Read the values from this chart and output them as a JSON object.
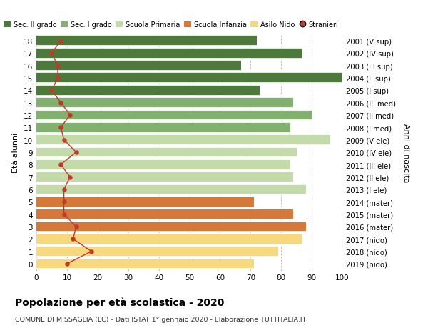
{
  "ages": [
    18,
    17,
    16,
    15,
    14,
    13,
    12,
    11,
    10,
    9,
    8,
    7,
    6,
    5,
    4,
    3,
    2,
    1,
    0
  ],
  "years": [
    "2001 (V sup)",
    "2002 (IV sup)",
    "2003 (III sup)",
    "2004 (II sup)",
    "2005 (I sup)",
    "2006 (III med)",
    "2007 (II med)",
    "2008 (I med)",
    "2009 (V ele)",
    "2010 (IV ele)",
    "2011 (III ele)",
    "2012 (II ele)",
    "2013 (I ele)",
    "2014 (mater)",
    "2015 (mater)",
    "2016 (mater)",
    "2017 (nido)",
    "2018 (nido)",
    "2019 (nido)"
  ],
  "bar_values": [
    72,
    87,
    67,
    100,
    73,
    84,
    90,
    83,
    96,
    85,
    83,
    84,
    88,
    71,
    84,
    88,
    87,
    79,
    71
  ],
  "bar_colors": [
    "#4d7a3c",
    "#4d7a3c",
    "#4d7a3c",
    "#4d7a3c",
    "#4d7a3c",
    "#82b06e",
    "#82b06e",
    "#82b06e",
    "#c2dba8",
    "#c2dba8",
    "#c2dba8",
    "#c2dba8",
    "#c2dba8",
    "#d4793a",
    "#d4793a",
    "#d4793a",
    "#f7d87c",
    "#f7d87c",
    "#f7d87c"
  ],
  "stranieri_values": [
    8,
    5,
    7,
    7,
    5,
    8,
    11,
    8,
    9,
    13,
    8,
    11,
    9,
    9,
    9,
    13,
    12,
    18,
    10
  ],
  "legend_labels": [
    "Sec. II grado",
    "Sec. I grado",
    "Scuola Primaria",
    "Scuola Infanzia",
    "Asilo Nido",
    "Stranieri"
  ],
  "legend_colors": [
    "#4d7a3c",
    "#82b06e",
    "#c2dba8",
    "#d4793a",
    "#f7d87c",
    "#c0392b"
  ],
  "title": "Popolazione per età scolastica - 2020",
  "subtitle": "COMUNE DI MISSAGLIA (LC) - Dati ISTAT 1° gennaio 2020 - Elaborazione TUTTITALIA.IT",
  "ylabel_left": "Età alunni",
  "ylabel_right": "Anni di nascita",
  "xlim": [
    0,
    100
  ],
  "bg_color": "#ffffff",
  "fig_bg_color": "#ffffff",
  "stranieri_color": "#c0392b",
  "stranieri_line_color": "#c0392b",
  "bar_height": 0.85
}
